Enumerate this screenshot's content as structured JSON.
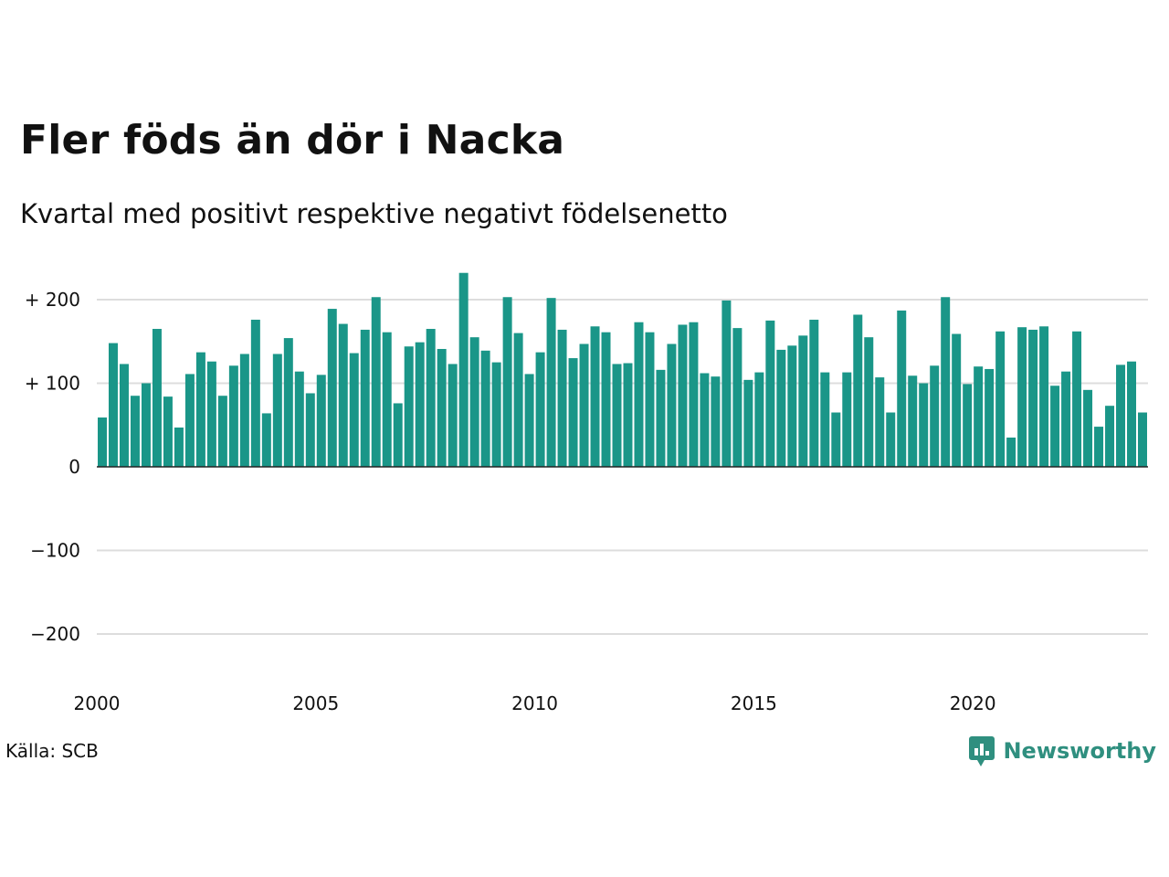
{
  "header": {
    "title": "Fler föds än dör i Nacka",
    "subtitle": "Kvartal med positivt respektive negativt födelsenetto"
  },
  "footer": {
    "source": "Källa: SCB",
    "brand": "Newsworthy",
    "brand_icon": "newsworthy-logo-icon"
  },
  "colors": {
    "positive": "#1a9688",
    "gridline": "#dddddd",
    "zero_line": "#222222",
    "brand": "#2f8f7f"
  },
  "chart_data": {
    "type": "bar",
    "x_start": "2000 Q1",
    "x_ticks": [
      2000,
      2005,
      2010,
      2015,
      2020
    ],
    "x_tick_labels": [
      "2000",
      "2005",
      "2010",
      "2015",
      "2020"
    ],
    "ylim": [
      -200,
      200
    ],
    "y_ticks": [
      200,
      100,
      0,
      -100,
      -200
    ],
    "y_tick_labels": [
      "+ 200",
      "+ 100",
      "0",
      "−100",
      "−200"
    ],
    "grid": true,
    "values": [
      59,
      148,
      123,
      85,
      100,
      165,
      84,
      47,
      111,
      137,
      126,
      85,
      121,
      135,
      176,
      64,
      135,
      154,
      114,
      88,
      110,
      189,
      171,
      136,
      164,
      203,
      161,
      76,
      144,
      149,
      165,
      141,
      123,
      232,
      155,
      139,
      125,
      203,
      160,
      111,
      137,
      202,
      164,
      130,
      147,
      168,
      161,
      123,
      124,
      173,
      161,
      116,
      147,
      170,
      173,
      112,
      108,
      199,
      166,
      104,
      113,
      175,
      140,
      145,
      157,
      176,
      113,
      65,
      113,
      182,
      155,
      107,
      65,
      187,
      109,
      100,
      121,
      203,
      159,
      99,
      120,
      117,
      162,
      35,
      167,
      164,
      168,
      97,
      114,
      162,
      92,
      48,
      73,
      122,
      126,
      65
    ]
  }
}
